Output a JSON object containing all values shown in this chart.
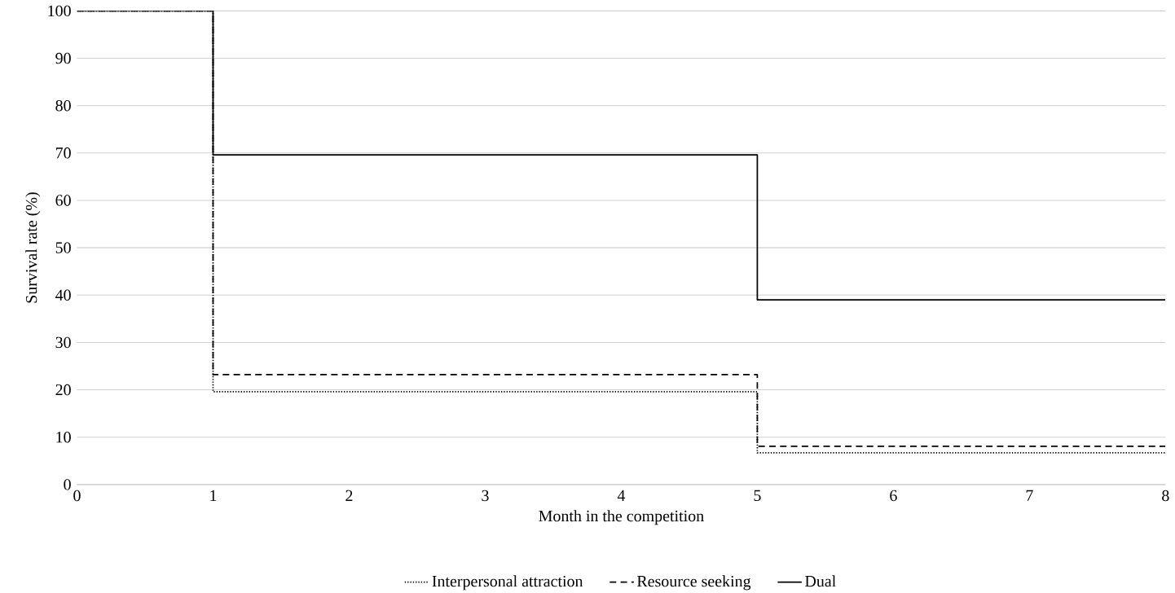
{
  "chart_data": {
    "type": "step",
    "xlabel": "Month in the competition",
    "ylabel": "Survival rate (%)",
    "xlim": [
      0,
      8
    ],
    "ylim": [
      0,
      100
    ],
    "xticks": [
      0,
      1,
      2,
      3,
      4,
      5,
      6,
      7,
      8
    ],
    "yticks": [
      0,
      10,
      20,
      30,
      40,
      50,
      60,
      70,
      80,
      90,
      100
    ],
    "grid": "y",
    "legend": "bottom",
    "marker": "none",
    "x": [
      0,
      1,
      5,
      8
    ],
    "series": [
      {
        "name": "Interpersonal attraction",
        "color": "#000000",
        "line_style": "dotted",
        "values": [
          100,
          19.6,
          6.7,
          6.7
        ]
      },
      {
        "name": "Resource seeking",
        "color": "#000000",
        "line_style": "dashed",
        "values": [
          100,
          23.2,
          8.1,
          8.1
        ]
      },
      {
        "name": "Dual",
        "color": "#000000",
        "line_style": "solid",
        "values": [
          100,
          69.6,
          39,
          39
        ]
      }
    ]
  }
}
